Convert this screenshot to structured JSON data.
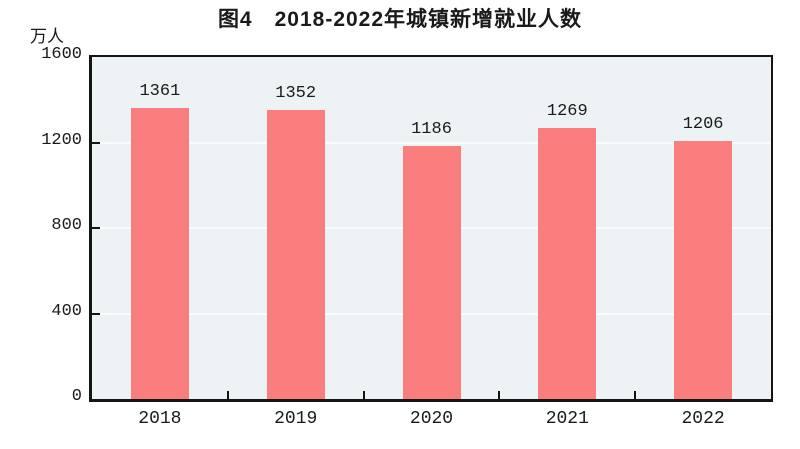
{
  "chart_data": {
    "type": "bar",
    "title": "图4　2018-2022年城镇新增就业人数",
    "unit_label": "万人",
    "categories": [
      "2018",
      "2019",
      "2020",
      "2021",
      "2022"
    ],
    "values": [
      1361,
      1352,
      1186,
      1269,
      1206
    ],
    "value_labels": [
      "1361",
      "1352",
      "1186",
      "1269",
      "1206"
    ],
    "ylabel": "万人",
    "xlabel": "",
    "ylim": [
      0,
      1600
    ],
    "yticks": [
      0,
      400,
      800,
      1200,
      1600
    ],
    "grid": "horizontal gridlines at 400, 800, 1200",
    "legend": "none",
    "colors": {
      "bar": "#fa7e7d",
      "plot_background": "#edf2f5",
      "gridline": "#f9fcfd",
      "axis": "#151515",
      "text": "#1a1a1a",
      "page_background": "#ffffff"
    }
  }
}
